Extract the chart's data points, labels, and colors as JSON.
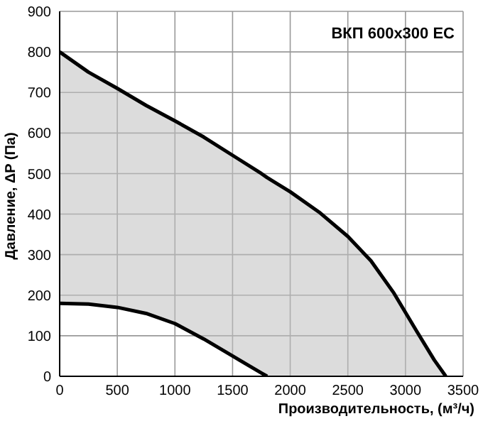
{
  "chart_data": {
    "type": "line",
    "title": "ВКП  600x300 EC",
    "xlabel": "Производительность, (м³/ч)",
    "ylabel": "Давление, ΔP (Па)",
    "series": [
      {
        "type": "area",
        "color": "#000000",
        "x": [
          0,
          250,
          500,
          750,
          1000,
          1250,
          1500,
          1750,
          1800,
          2000,
          2250,
          2500,
          2700,
          2900,
          3100,
          3250,
          3350
        ],
        "values": [
          800,
          750,
          710,
          668,
          630,
          590,
          545,
          500,
          490,
          455,
          405,
          345,
          285,
          205,
          110,
          40,
          0
        ]
      },
      {
        "color": "#000000",
        "x": [
          0,
          250,
          500,
          750,
          1000,
          1250,
          1500,
          1750,
          1800
        ],
        "values": [
          180,
          178,
          170,
          155,
          130,
          92,
          50,
          8,
          0
        ]
      }
    ],
    "xlim": [
      0,
      3500
    ],
    "xticks": [
      0,
      500,
      1000,
      1500,
      2000,
      2500,
      3000,
      3500
    ],
    "ylim": [
      0,
      900
    ],
    "yticks": [
      0,
      100,
      200,
      300,
      400,
      500,
      600,
      700,
      800,
      900
    ],
    "grid": true,
    "marker": "none",
    "line_style": "solid"
  }
}
